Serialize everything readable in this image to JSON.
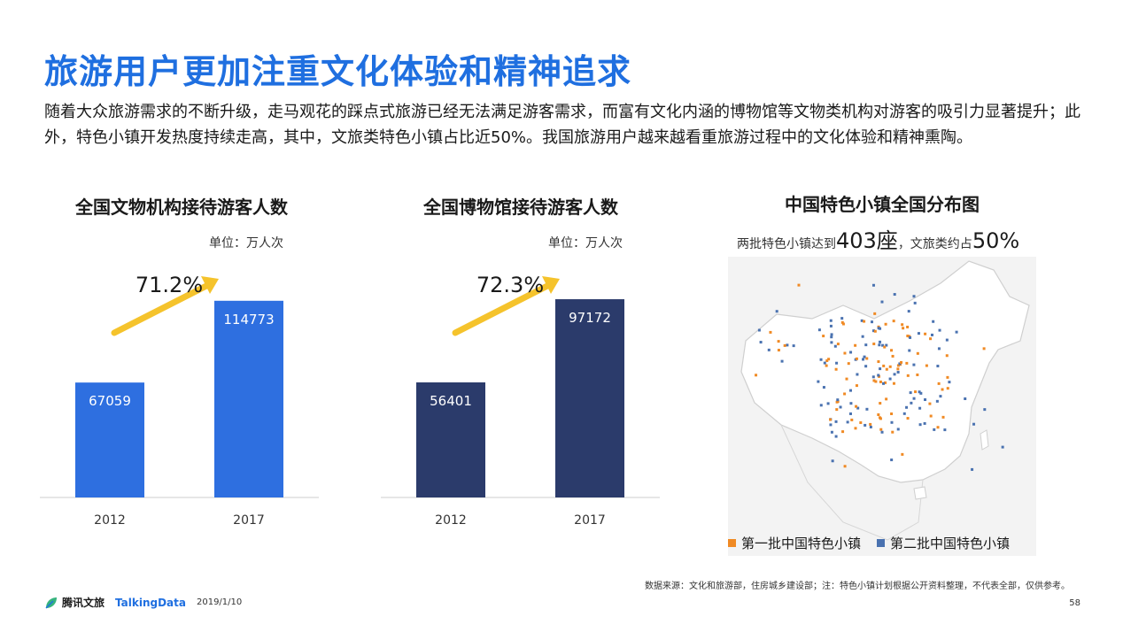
{
  "title": "旅游用户更加注重文化体验和精神追求",
  "intro": "随着大众旅游需求的不断升级，走马观花的踩点式旅游已经无法满足游客需求，而富有文化内涵的博物馆等文物类机构对游客的吸引力显著提升；此外，特色小镇开发热度持续走高，其中，文旅类特色小镇占比近50%。我国旅游用户越来越看重旅游过程中的文化体验和精神熏陶。",
  "chart_data": [
    {
      "type": "bar",
      "title": "全国文物机构接待游客人数",
      "unit": "单位：万人次",
      "categories": [
        "2012",
        "2017"
      ],
      "values": [
        67059,
        114773
      ],
      "value_labels": [
        "67059",
        "114773"
      ],
      "growth_label": "71.2%",
      "bar_color": "#2e6fe0",
      "ylim": [
        0,
        125000
      ]
    },
    {
      "type": "bar",
      "title": "全国博物馆接待游客人数",
      "unit": "单位：万人次",
      "categories": [
        "2012",
        "2017"
      ],
      "values": [
        56401,
        97172
      ],
      "value_labels": [
        "56401",
        "97172"
      ],
      "growth_label": "72.3%",
      "bar_color": "#2b3b6b",
      "ylim": [
        0,
        105000
      ]
    }
  ],
  "map": {
    "title": "中国特色小镇全国分布图",
    "subtitle_prefix": "两批特色小镇达到",
    "subtitle_count": "403座",
    "subtitle_mid": "，文旅类约占",
    "subtitle_share": "50%",
    "legend": [
      {
        "label": "第一批中国特色小镇",
        "color": "#f08a24"
      },
      {
        "label": "第二批中国特色小镇",
        "color": "#4a72b0"
      }
    ]
  },
  "accent_color": "#f5c32c",
  "source": "数据来源：文化和旅游部，住房城乡建设部；注：特色小镇计划根据公开资料整理，不代表全部，仅供参考。",
  "footer": {
    "logo_text": "腾讯文旅",
    "brand": "TalkingData",
    "date": "2019/1/10",
    "page": "58"
  }
}
